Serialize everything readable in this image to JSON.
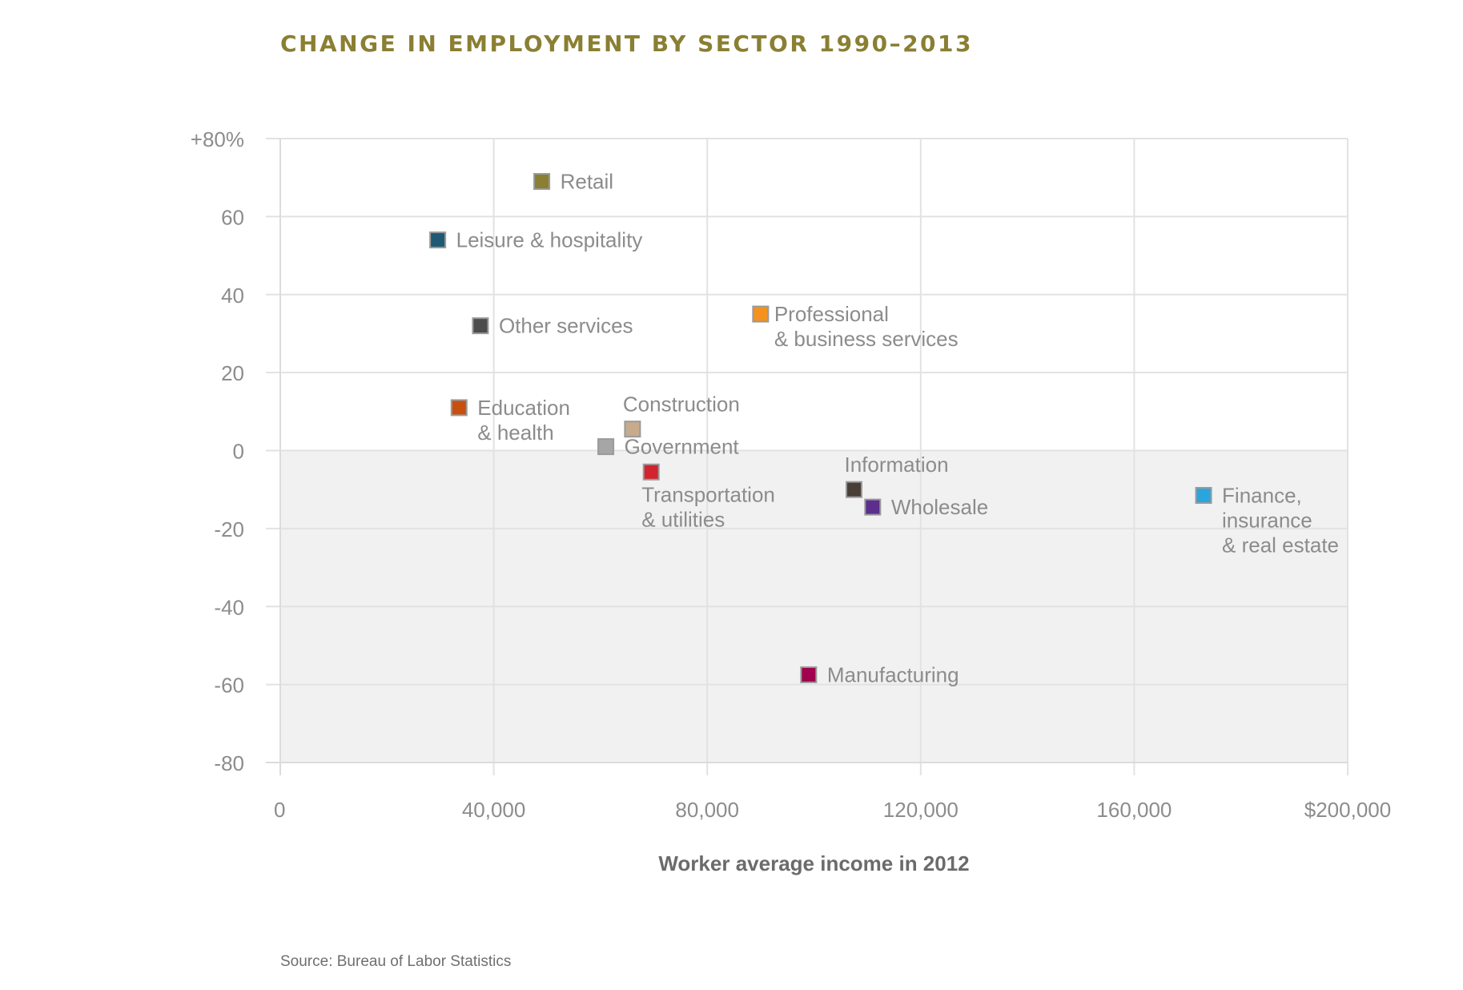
{
  "title": "CHANGE IN EMPLOYMENT BY SECTOR 1990–2013",
  "source": "Source: Bureau of Labor Statistics",
  "chart_data": {
    "type": "scatter",
    "title": "CHANGE IN EMPLOYMENT BY SECTOR 1990–2013",
    "xlabel": "Worker average income in 2012",
    "ylabel": "",
    "xlim": [
      0,
      200000
    ],
    "ylim": [
      -80,
      80
    ],
    "grid": true,
    "shaded_region": "below 0",
    "x_ticks": [
      {
        "value": 0,
        "label": "0"
      },
      {
        "value": 40000,
        "label": "40,000"
      },
      {
        "value": 80000,
        "label": "80,000"
      },
      {
        "value": 120000,
        "label": "120,000"
      },
      {
        "value": 160000,
        "label": "160,000"
      },
      {
        "value": 200000,
        "label": "$200,000"
      }
    ],
    "y_ticks": [
      {
        "value": 80,
        "label": "+80%"
      },
      {
        "value": 60,
        "label": "60"
      },
      {
        "value": 40,
        "label": "40"
      },
      {
        "value": 20,
        "label": "20"
      },
      {
        "value": 0,
        "label": "0"
      },
      {
        "value": -20,
        "label": "-20"
      },
      {
        "value": -40,
        "label": "-40"
      },
      {
        "value": -60,
        "label": "-60"
      },
      {
        "value": -80,
        "label": "-80"
      }
    ],
    "points": [
      {
        "name": "retail",
        "label": [
          "Retail"
        ],
        "x": 49000,
        "y": 69,
        "color": "#8a7f32",
        "label_pos": "right"
      },
      {
        "name": "leisure-hospitality",
        "label": [
          "Leisure & hospitality"
        ],
        "x": 29500,
        "y": 54,
        "color": "#1f5a73",
        "label_pos": "right"
      },
      {
        "name": "other-services",
        "label": [
          "Other services"
        ],
        "x": 37500,
        "y": 32,
        "color": "#4d4d4d",
        "label_pos": "right"
      },
      {
        "name": "professional-business-services",
        "label": [
          "Professional",
          "& business services"
        ],
        "x": 90000,
        "y": 35,
        "color": "#f3921e",
        "label_pos": "right-top"
      },
      {
        "name": "education-health",
        "label": [
          "Education",
          "& health"
        ],
        "x": 33500,
        "y": 11,
        "color": "#c7500f",
        "label_pos": "right"
      },
      {
        "name": "construction",
        "label": [
          "Construction"
        ],
        "x": 66000,
        "y": 5.5,
        "color": "#c7ab8c",
        "label_pos": "above"
      },
      {
        "name": "government",
        "label": [
          "Government"
        ],
        "x": 61000,
        "y": 1,
        "color": "#a6a6a6",
        "label_pos": "right"
      },
      {
        "name": "transportation-utilities",
        "label": [
          "Transportation",
          "& utilities"
        ],
        "x": 69500,
        "y": -5.5,
        "color": "#d2232f",
        "label_pos": "below"
      },
      {
        "name": "information",
        "label": [
          "Information"
        ],
        "x": 107500,
        "y": -10,
        "color": "#4a3f37",
        "label_pos": "above"
      },
      {
        "name": "wholesale",
        "label": [
          "Wholesale"
        ],
        "x": 111000,
        "y": -14.5,
        "color": "#5c2f8d",
        "label_pos": "right"
      },
      {
        "name": "finance-insurance-real-estate",
        "label": [
          "Finance,",
          "insurance",
          "& real estate"
        ],
        "x": 173000,
        "y": -11.5,
        "color": "#2aa6de",
        "label_pos": "right"
      },
      {
        "name": "manufacturing",
        "label": [
          "Manufacturing"
        ],
        "x": 99000,
        "y": -57.5,
        "color": "#a1004f",
        "label_pos": "right"
      }
    ]
  }
}
